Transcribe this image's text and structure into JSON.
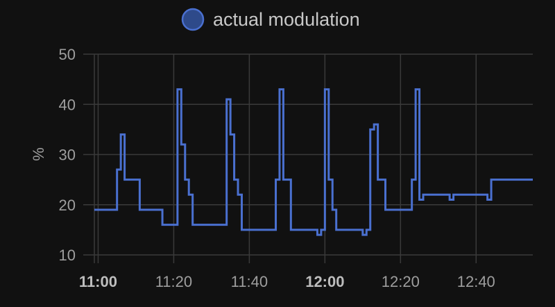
{
  "chart_data": {
    "type": "line",
    "line_style": "step",
    "ylabel": "%",
    "ylim": [
      10,
      50
    ],
    "yticks": [
      10,
      20,
      30,
      40,
      50
    ],
    "xlim": [
      "10:59",
      "12:55"
    ],
    "xticks": [
      {
        "time": "11:00",
        "label": "11:00",
        "bold": true
      },
      {
        "time": "11:20",
        "label": "11:20",
        "bold": false
      },
      {
        "time": "11:40",
        "label": "11:40",
        "bold": false
      },
      {
        "time": "12:00",
        "label": "12:00",
        "bold": true
      },
      {
        "time": "12:20",
        "label": "12:20",
        "bold": false
      },
      {
        "time": "12:40",
        "label": "12:40",
        "bold": false
      }
    ],
    "grid": true,
    "legend_position": "top-center",
    "series": [
      {
        "name": "actual modulation",
        "color": "#4a70d0",
        "fill_color": "#2e4a8a",
        "points": [
          {
            "x": "10:59",
            "y": 19
          },
          {
            "x": "11:05",
            "y": 27
          },
          {
            "x": "11:06",
            "y": 34
          },
          {
            "x": "11:07",
            "y": 25
          },
          {
            "x": "11:11",
            "y": 19
          },
          {
            "x": "11:17",
            "y": 16
          },
          {
            "x": "11:21",
            "y": 43
          },
          {
            "x": "11:22",
            "y": 32
          },
          {
            "x": "11:23",
            "y": 25
          },
          {
            "x": "11:24",
            "y": 22
          },
          {
            "x": "11:25",
            "y": 16
          },
          {
            "x": "11:34",
            "y": 41
          },
          {
            "x": "11:35",
            "y": 34
          },
          {
            "x": "11:36",
            "y": 25
          },
          {
            "x": "11:37",
            "y": 22
          },
          {
            "x": "11:38",
            "y": 15
          },
          {
            "x": "11:47",
            "y": 25
          },
          {
            "x": "11:48",
            "y": 43
          },
          {
            "x": "11:49",
            "y": 25
          },
          {
            "x": "11:51",
            "y": 15
          },
          {
            "x": "11:58",
            "y": 14
          },
          {
            "x": "11:59",
            "y": 15
          },
          {
            "x": "12:00",
            "y": 43
          },
          {
            "x": "12:01",
            "y": 25
          },
          {
            "x": "12:02",
            "y": 19
          },
          {
            "x": "12:03",
            "y": 15
          },
          {
            "x": "12:10",
            "y": 14
          },
          {
            "x": "12:11",
            "y": 15
          },
          {
            "x": "12:12",
            "y": 35
          },
          {
            "x": "12:13",
            "y": 36
          },
          {
            "x": "12:14",
            "y": 25
          },
          {
            "x": "12:16",
            "y": 19
          },
          {
            "x": "12:23",
            "y": 25
          },
          {
            "x": "12:24",
            "y": 43
          },
          {
            "x": "12:25",
            "y": 21
          },
          {
            "x": "12:26",
            "y": 22
          },
          {
            "x": "12:33",
            "y": 21
          },
          {
            "x": "12:34",
            "y": 22
          },
          {
            "x": "12:43",
            "y": 21
          },
          {
            "x": "12:44",
            "y": 25
          },
          {
            "x": "12:55",
            "y": 25
          }
        ]
      }
    ]
  }
}
